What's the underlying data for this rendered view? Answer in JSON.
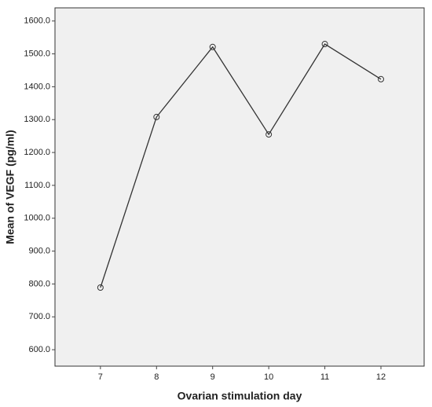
{
  "chart_data": {
    "type": "line",
    "xlabel": "Ovarian stimulation day",
    "ylabel": "Mean of VEGF (pg/ml)",
    "x": [
      7,
      8,
      9,
      10,
      11,
      12
    ],
    "values": [
      789,
      1308,
      1521,
      1255,
      1530,
      1423
    ],
    "color": "#333333",
    "background": "#f0f0f0",
    "xlim": [
      6.19,
      12.77
    ],
    "xticks": [
      7,
      8,
      9,
      10,
      11,
      12
    ],
    "ylim": [
      550,
      1640
    ],
    "yticks": [
      {
        "value": 600,
        "label": "600.0"
      },
      {
        "value": 700,
        "label": "700.0"
      },
      {
        "value": 800,
        "label": "800.0"
      },
      {
        "value": 900,
        "label": "900.0"
      },
      {
        "value": 1000,
        "label": "1000.0"
      },
      {
        "value": 1100,
        "label": "1100.0"
      },
      {
        "value": 1200,
        "label": "1200.0"
      },
      {
        "value": 1300,
        "label": "1300.0"
      },
      {
        "value": 1400,
        "label": "1400.0"
      },
      {
        "value": 1500,
        "label": "1500.0"
      },
      {
        "value": 1600,
        "label": "1600.0"
      }
    ]
  }
}
